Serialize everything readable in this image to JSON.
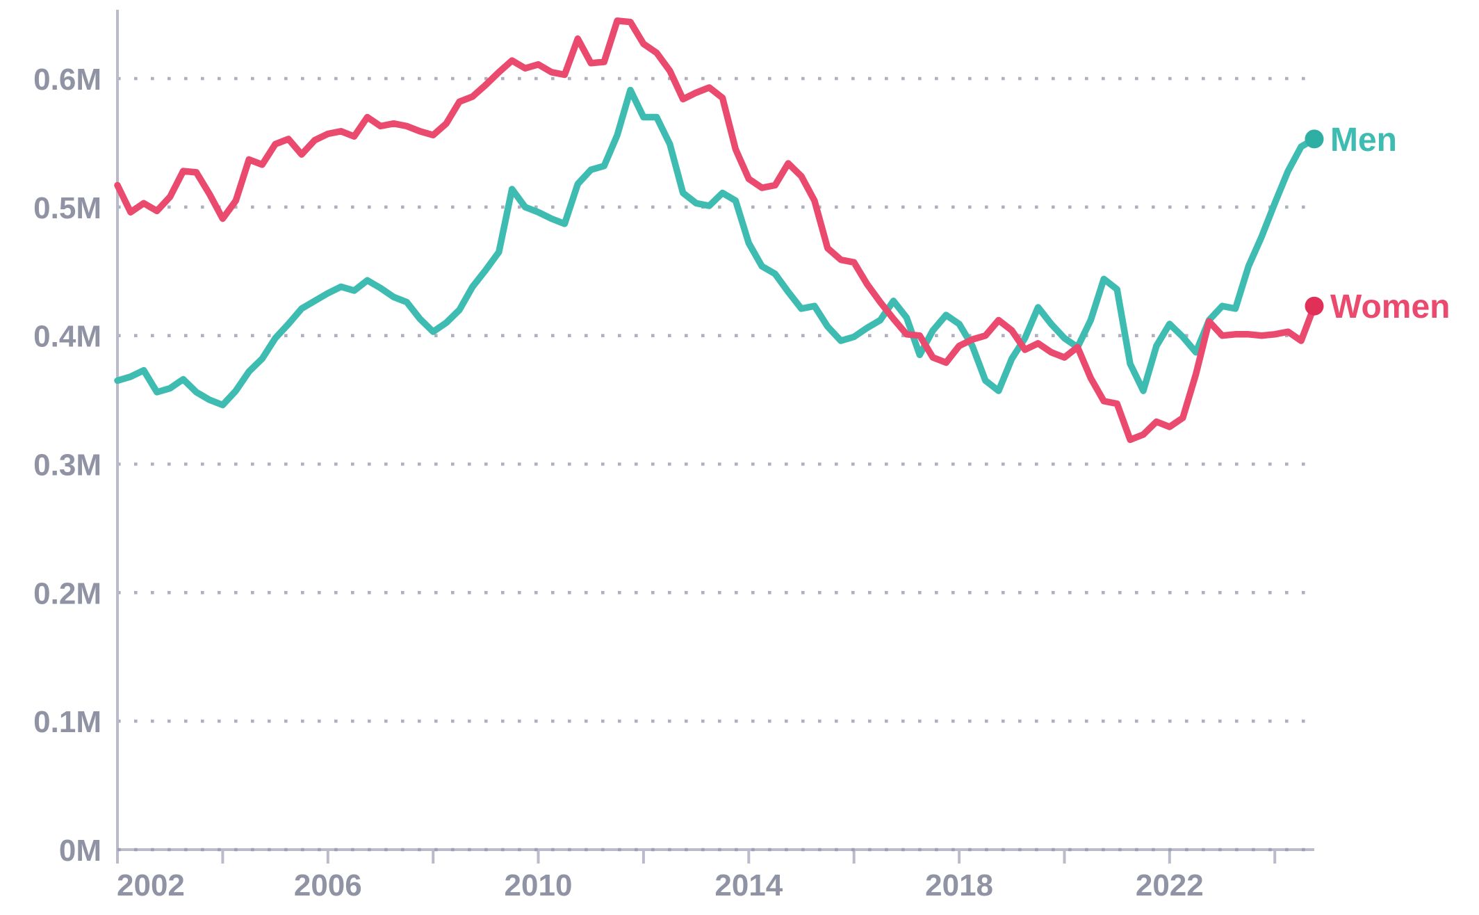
{
  "page": {
    "background": "#ffffff"
  },
  "chart_data": {
    "type": "line",
    "title": "",
    "xlabel": "",
    "ylabel": "",
    "y_unit_suffix": "M",
    "grid": "horizontal-dotted",
    "legend_position": "end-of-line-labels-right",
    "xlim": [
      2002,
      2024.75
    ],
    "ylim": [
      0,
      0.66
    ],
    "y_ticks": [
      0,
      0.1,
      0.2,
      0.3,
      0.4,
      0.5,
      0.6
    ],
    "y_tick_labels": [
      "0M",
      "0.1M",
      "0.2M",
      "0.3M",
      "0.4M",
      "0.5M",
      "0.6M"
    ],
    "x_minor_tick_years": [
      2002,
      2004,
      2006,
      2008,
      2010,
      2012,
      2014,
      2016,
      2018,
      2020,
      2022,
      2024
    ],
    "x_tick_label_years": [
      2002,
      2006,
      2010,
      2014,
      2018,
      2022
    ],
    "x_tick_labels": [
      "2002",
      "2006",
      "2010",
      "2014",
      "2018",
      "2022"
    ],
    "colors": {
      "axis": "#b9bbca",
      "grid_dots": "#aeb0bf",
      "baseline_dots": "#9da0b2",
      "tick_labels": "#8f93a3"
    },
    "x": [
      2002,
      2002.25,
      2002.5,
      2002.75,
      2003,
      2003.25,
      2003.5,
      2003.75,
      2004,
      2004.25,
      2004.5,
      2004.75,
      2005,
      2005.25,
      2005.5,
      2005.75,
      2006,
      2006.25,
      2006.5,
      2006.75,
      2007,
      2007.25,
      2007.5,
      2007.75,
      2008,
      2008.25,
      2008.5,
      2008.75,
      2009,
      2009.25,
      2009.5,
      2009.75,
      2010,
      2010.25,
      2010.5,
      2010.75,
      2011,
      2011.25,
      2011.5,
      2011.75,
      2012,
      2012.25,
      2012.5,
      2012.75,
      2013,
      2013.25,
      2013.5,
      2013.75,
      2014,
      2014.25,
      2014.5,
      2014.75,
      2015,
      2015.25,
      2015.5,
      2015.75,
      2016,
      2016.25,
      2016.5,
      2016.75,
      2017,
      2017.25,
      2017.5,
      2017.75,
      2018,
      2018.25,
      2018.5,
      2018.75,
      2019,
      2019.25,
      2019.5,
      2019.75,
      2020,
      2020.25,
      2020.5,
      2020.75,
      2021,
      2021.25,
      2021.5,
      2021.75,
      2022,
      2022.25,
      2022.5,
      2022.75,
      2023,
      2023.25,
      2023.5,
      2023.75,
      2024,
      2024.25,
      2024.5,
      2024.75
    ],
    "series": [
      {
        "name": "Men",
        "color": "#3fbcb1",
        "dot_color": "#2fafa4",
        "values": [
          0.365,
          0.368,
          0.373,
          0.356,
          0.359,
          0.366,
          0.356,
          0.35,
          0.346,
          0.357,
          0.372,
          0.382,
          0.398,
          0.409,
          0.421,
          0.427,
          0.433,
          0.438,
          0.435,
          0.443,
          0.437,
          0.43,
          0.426,
          0.413,
          0.403,
          0.41,
          0.42,
          0.438,
          0.451,
          0.465,
          0.514,
          0.5,
          0.496,
          0.491,
          0.487,
          0.518,
          0.529,
          0.532,
          0.556,
          0.591,
          0.57,
          0.57,
          0.549,
          0.511,
          0.503,
          0.501,
          0.511,
          0.505,
          0.472,
          0.454,
          0.448,
          0.434,
          0.421,
          0.423,
          0.407,
          0.396,
          0.399,
          0.406,
          0.412,
          0.427,
          0.414,
          0.385,
          0.404,
          0.416,
          0.409,
          0.392,
          0.365,
          0.357,
          0.382,
          0.398,
          0.422,
          0.409,
          0.398,
          0.391,
          0.412,
          0.444,
          0.436,
          0.378,
          0.357,
          0.392,
          0.409,
          0.399,
          0.387,
          0.412,
          0.423,
          0.421,
          0.454,
          0.477,
          0.503,
          0.528,
          0.547,
          0.553
        ]
      },
      {
        "name": "Women",
        "color": "#ea4a6e",
        "dot_color": "#e03058",
        "values": [
          0.517,
          0.496,
          0.503,
          0.497,
          0.508,
          0.528,
          0.527,
          0.51,
          0.491,
          0.505,
          0.537,
          0.533,
          0.549,
          0.553,
          0.541,
          0.552,
          0.557,
          0.559,
          0.555,
          0.57,
          0.563,
          0.565,
          0.563,
          0.559,
          0.556,
          0.565,
          0.582,
          0.586,
          0.595,
          0.605,
          0.614,
          0.608,
          0.611,
          0.605,
          0.603,
          0.631,
          0.612,
          0.613,
          0.645,
          0.644,
          0.627,
          0.62,
          0.606,
          0.584,
          0.589,
          0.593,
          0.585,
          0.545,
          0.522,
          0.515,
          0.517,
          0.534,
          0.524,
          0.505,
          0.468,
          0.459,
          0.457,
          0.44,
          0.426,
          0.413,
          0.401,
          0.4,
          0.383,
          0.379,
          0.392,
          0.397,
          0.4,
          0.412,
          0.404,
          0.389,
          0.394,
          0.387,
          0.383,
          0.391,
          0.367,
          0.349,
          0.347,
          0.319,
          0.323,
          0.333,
          0.329,
          0.336,
          0.37,
          0.411,
          0.4,
          0.401,
          0.401,
          0.4,
          0.401,
          0.403,
          0.396,
          0.423
        ]
      }
    ]
  }
}
